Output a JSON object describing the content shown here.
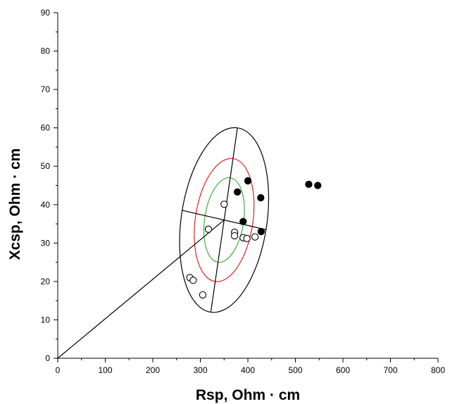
{
  "chart_data": {
    "type": "scatter",
    "xlabel": "Rsp, Ohm · cm",
    "ylabel": "Xcsp, Ohm · cm",
    "xlim": [
      0,
      800
    ],
    "ylim": [
      0,
      90
    ],
    "xticks": [
      0,
      100,
      200,
      300,
      400,
      500,
      600,
      700,
      800
    ],
    "yticks": [
      0,
      10,
      20,
      30,
      40,
      50,
      60,
      70,
      80,
      90
    ],
    "grid": false,
    "series": [
      {
        "marker": "open-circle",
        "color": "#000000",
        "points": [
          [
            278,
            21.0
          ],
          [
            285,
            20.3
          ],
          [
            305,
            16.5
          ],
          [
            317,
            33.6
          ],
          [
            350,
            40.1
          ],
          [
            372,
            32.8
          ],
          [
            372,
            31.9
          ],
          [
            390,
            31.4
          ],
          [
            398,
            31.2
          ],
          [
            415,
            31.6
          ]
        ]
      },
      {
        "marker": "filled-circle",
        "color": "#000000",
        "points": [
          [
            378,
            43.3
          ],
          [
            400,
            46.2
          ],
          [
            427,
            41.8
          ],
          [
            390,
            35.6
          ],
          [
            428,
            33.0
          ],
          [
            528,
            45.3
          ],
          [
            547,
            45.0
          ]
        ]
      }
    ],
    "ellipses": [
      {
        "color": "#000000",
        "center": [
          350,
          36.0
        ],
        "semi_major_end": [
          378,
          60.0
        ],
        "semi_minor_end": [
          262,
          38.5
        ]
      },
      {
        "color": "#e8201c",
        "center": [
          350,
          36.0
        ],
        "semi_major_end": [
          369,
          52.0
        ],
        "semi_minor_end": [
          291,
          37.7
        ]
      },
      {
        "color": "#3fae3f",
        "center": [
          350,
          36.0
        ],
        "semi_major_end": [
          363,
          47.0
        ],
        "semi_minor_end": [
          310,
          37.1
        ]
      }
    ],
    "lines": [
      {
        "color": "#000000",
        "from": [
          0,
          0
        ],
        "to": [
          350,
          36.0
        ]
      },
      {
        "color": "#000000",
        "from": [
          322,
          12.0
        ],
        "to": [
          378,
          60.0
        ]
      },
      {
        "color": "#000000",
        "from": [
          262,
          38.5
        ],
        "to": [
          438,
          33.5
        ]
      }
    ]
  }
}
